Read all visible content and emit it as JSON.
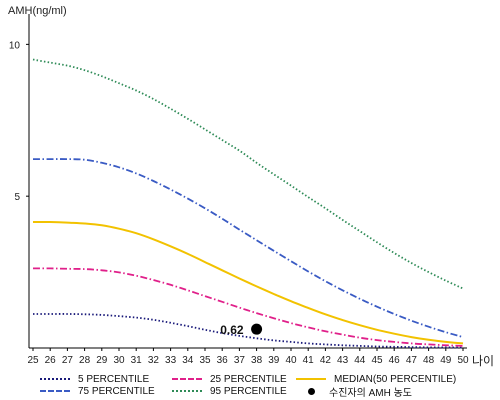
{
  "chart_data": {
    "type": "line",
    "ylabel": "AMH(ng/ml)",
    "xlabel": "나이",
    "x": [
      25,
      26,
      27,
      28,
      29,
      30,
      31,
      32,
      33,
      34,
      35,
      36,
      37,
      38,
      39,
      40,
      41,
      42,
      43,
      44,
      45,
      46,
      47,
      48,
      49,
      50
    ],
    "xlim": [
      25,
      50
    ],
    "ylim": [
      0,
      11
    ],
    "yticks": [
      5,
      10
    ],
    "grid": false,
    "legend_position": "bottom",
    "series": [
      {
        "name": "5 PERCENTILE",
        "color": "#1a1a7a",
        "dash": "dotted",
        "values": [
          1.12,
          1.12,
          1.12,
          1.11,
          1.09,
          1.05,
          1.0,
          0.93,
          0.83,
          0.72,
          0.6,
          0.49,
          0.4,
          0.32,
          0.25,
          0.2,
          0.15,
          0.12,
          0.09,
          0.07,
          0.05,
          0.04,
          0.03,
          0.02,
          0.02,
          0.01
        ]
      },
      {
        "name": "25 PERCENTILE",
        "color": "#e0208a",
        "dash": "dashdot",
        "values": [
          2.62,
          2.62,
          2.61,
          2.6,
          2.56,
          2.49,
          2.38,
          2.24,
          2.08,
          1.9,
          1.71,
          1.52,
          1.33,
          1.15,
          0.98,
          0.82,
          0.68,
          0.55,
          0.44,
          0.34,
          0.26,
          0.2,
          0.15,
          0.12,
          0.09,
          0.07
        ]
      },
      {
        "name": "MEDIAN(50 PERCENTILE)",
        "color": "#f2c200",
        "dash": "solid",
        "values": [
          4.15,
          4.15,
          4.13,
          4.1,
          4.04,
          3.93,
          3.78,
          3.58,
          3.35,
          3.1,
          2.83,
          2.56,
          2.29,
          2.03,
          1.78,
          1.54,
          1.32,
          1.11,
          0.92,
          0.75,
          0.6,
          0.47,
          0.36,
          0.27,
          0.2,
          0.15
        ]
      },
      {
        "name": "75 PERCENTILE",
        "color": "#3a5bc4",
        "dash": "dashdot",
        "values": [
          6.22,
          6.22,
          6.22,
          6.2,
          6.1,
          5.95,
          5.75,
          5.5,
          5.22,
          4.92,
          4.6,
          4.26,
          3.9,
          3.55,
          3.2,
          2.86,
          2.52,
          2.2,
          1.9,
          1.62,
          1.36,
          1.12,
          0.9,
          0.7,
          0.52,
          0.36
        ]
      },
      {
        "name": "95 PERCENTILE",
        "color": "#2e8b57",
        "dash": "dotted",
        "values": [
          9.5,
          9.4,
          9.3,
          9.15,
          8.95,
          8.72,
          8.48,
          8.2,
          7.88,
          7.55,
          7.2,
          6.85,
          6.5,
          6.1,
          5.72,
          5.35,
          4.97,
          4.6,
          4.22,
          3.85,
          3.48,
          3.13,
          2.8,
          2.5,
          2.22,
          1.96
        ]
      }
    ],
    "point": {
      "name": "수진자의 AMH 농도",
      "x": 38,
      "y": 0.62,
      "label": "0.62"
    }
  }
}
